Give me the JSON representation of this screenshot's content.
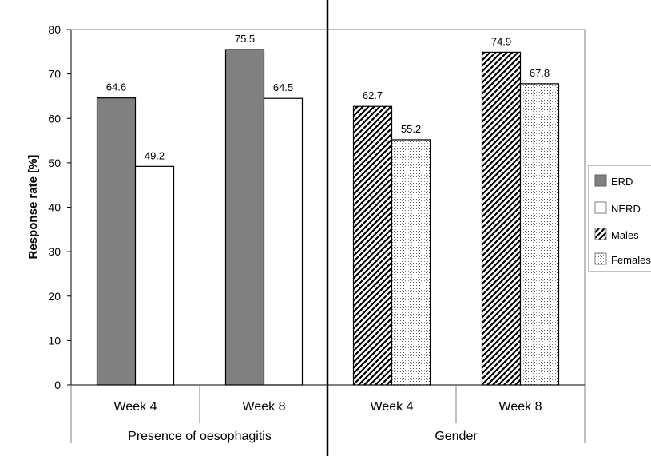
{
  "chart_data": {
    "type": "bar",
    "ylabel": "Response rate [%]",
    "ylim": [
      0,
      80
    ],
    "yticks": [
      0,
      10,
      20,
      30,
      40,
      50,
      60,
      70,
      80
    ],
    "groups": [
      {
        "label": "Presence of oesophagitis",
        "categories": [
          "Week 4",
          "Week 8"
        ],
        "series": [
          {
            "name": "ERD",
            "values": [
              64.6,
              75.5
            ]
          },
          {
            "name": "NERD",
            "values": [
              49.2,
              64.5
            ]
          }
        ]
      },
      {
        "label": "Gender",
        "categories": [
          "Week 4",
          "Week 8"
        ],
        "series": [
          {
            "name": "Males",
            "values": [
              62.7,
              74.9
            ]
          },
          {
            "name": "Females",
            "values": [
              55.2,
              67.8
            ]
          }
        ]
      }
    ],
    "legend": {
      "position": "right",
      "entries": [
        {
          "name": "ERD",
          "fill": "solid-gray"
        },
        {
          "name": "NERD",
          "fill": "white"
        },
        {
          "name": "Males",
          "fill": "diagonal-hatch"
        },
        {
          "name": "Females",
          "fill": "dotted"
        }
      ]
    },
    "colors": {
      "erd": "#808080",
      "outline": "#000000",
      "axis": "#000000",
      "grid_box": "#808080"
    }
  }
}
